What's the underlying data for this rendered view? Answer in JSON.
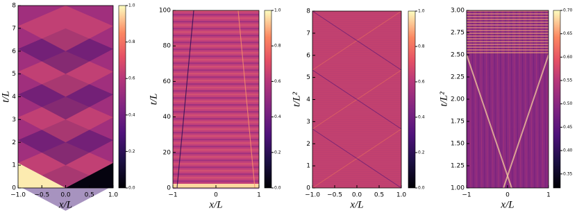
{
  "chart_data": [
    {
      "type": "heatmap",
      "colormap": "magma",
      "x_label": "x/L",
      "y_label": "t/L",
      "xlim": [
        -1,
        1
      ],
      "ylim": [
        0,
        8
      ],
      "xticks": [
        {
          "value": -1,
          "label": "−1.0"
        },
        {
          "value": -0.5,
          "label": "−0.5"
        },
        {
          "value": 0,
          "label": "0.0"
        },
        {
          "value": 0.5,
          "label": "0.5"
        },
        {
          "value": 1,
          "label": "1.0"
        }
      ],
      "yticks": [
        0,
        1,
        2,
        3,
        4,
        5,
        6,
        7,
        8
      ],
      "clim": [
        0,
        1
      ],
      "cticks": [
        {
          "value": 0,
          "label": "0.0"
        },
        {
          "value": 0.2,
          "label": "0.2"
        },
        {
          "value": 0.4,
          "label": "0.4"
        },
        {
          "value": 0.6,
          "label": "0.6"
        },
        {
          "value": 0.8,
          "label": "0.8"
        },
        {
          "value": 1,
          "label": "1.0"
        }
      ]
    },
    {
      "type": "heatmap",
      "colormap": "magma",
      "x_label": "x/L",
      "y_label": "t/L",
      "xlim": [
        -1,
        1
      ],
      "ylim": [
        0,
        100
      ],
      "xticks": [
        {
          "value": -1,
          "label": "−1"
        },
        0,
        1
      ],
      "yticks": [
        0,
        20,
        40,
        60,
        80,
        100
      ],
      "clim": [
        0,
        1
      ],
      "cticks": [
        {
          "value": 0,
          "label": "0.0"
        },
        {
          "value": 0.2,
          "label": "0.2"
        },
        {
          "value": 0.4,
          "label": "0.4"
        },
        {
          "value": 0.6,
          "label": "0.6"
        },
        {
          "value": 0.8,
          "label": "0.8"
        },
        {
          "value": 1,
          "label": "1.0"
        }
      ]
    },
    {
      "type": "heatmap",
      "colormap": "magma",
      "x_label": "x/L",
      "y_label": "t/L²",
      "xlim": [
        -1,
        1
      ],
      "ylim": [
        0,
        8
      ],
      "xticks": [
        {
          "value": -1,
          "label": "−1.0"
        },
        {
          "value": -0.5,
          "label": "−0.5"
        },
        {
          "value": 0,
          "label": "0.0"
        },
        {
          "value": 0.5,
          "label": "0.5"
        },
        {
          "value": 1,
          "label": "1.0"
        }
      ],
      "yticks": [
        0,
        1,
        2,
        3,
        4,
        5,
        6,
        7,
        8
      ],
      "clim": [
        0,
        1
      ],
      "cticks": [
        {
          "value": 0,
          "label": "0.0"
        },
        {
          "value": 0.2,
          "label": "0.2"
        },
        {
          "value": 0.4,
          "label": "0.4"
        },
        {
          "value": 0.6,
          "label": "0.6"
        },
        {
          "value": 0.8,
          "label": "0.8"
        },
        {
          "value": 1,
          "label": "1.0"
        }
      ]
    },
    {
      "type": "heatmap",
      "colormap": "magma",
      "x_label": "x/L",
      "y_label": "t/L²",
      "xlim": [
        -1,
        1
      ],
      "ylim": [
        1,
        3
      ],
      "xticks": [
        {
          "value": -1,
          "label": "−1"
        },
        0,
        1
      ],
      "yticks": [
        {
          "value": 1,
          "label": "1.00"
        },
        1.25,
        {
          "value": 1.5,
          "label": "1.50"
        },
        1.75,
        {
          "value": 2,
          "label": "2.00"
        },
        2.25,
        {
          "value": 2.5,
          "label": "2.50"
        },
        2.75,
        {
          "value": 3,
          "label": "3.00"
        }
      ],
      "clim": [
        0.32,
        0.7
      ],
      "cticks": [
        0.35,
        {
          "value": 0.4,
          "label": "0.40"
        },
        0.45,
        {
          "value": 0.5,
          "label": "0.50"
        },
        0.55,
        {
          "value": 0.6,
          "label": "0.60"
        },
        0.65,
        {
          "value": 0.7,
          "label": "0.70"
        }
      ]
    }
  ]
}
